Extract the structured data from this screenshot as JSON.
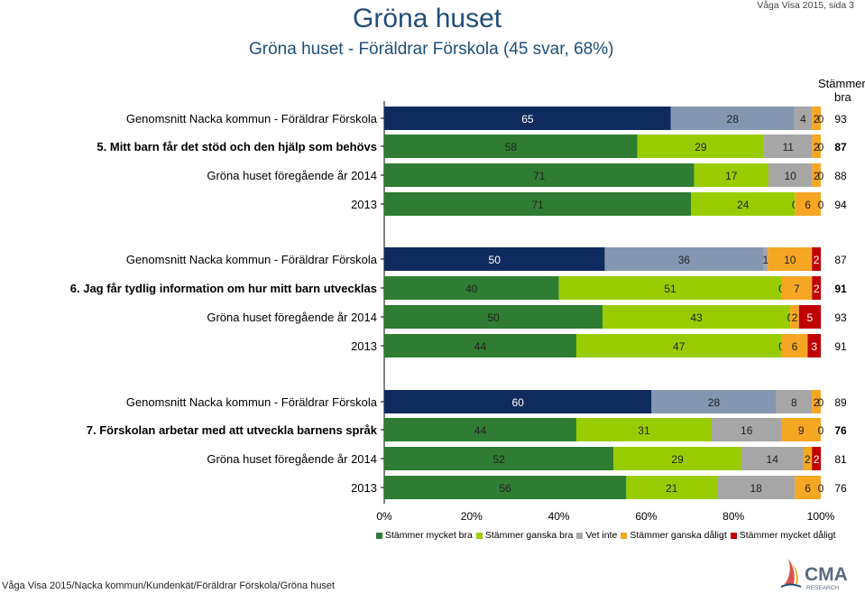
{
  "header": {
    "title": "Gröna huset",
    "subtitle": "Gröna huset - Föräldrar Förskola (45 svar, 68%)",
    "page_ref": "Våga Visa 2015, sida 3"
  },
  "score_header": [
    "Stämmer",
    "bra"
  ],
  "footer": "Våga Visa 2015/Nacka kommun/Kundenkät/Föräldrar Förskola/Gröna huset",
  "logo": {
    "name": "cma-research-logo",
    "text_main": "CMA",
    "text_sub": "RESEARCH"
  },
  "colors": {
    "Stämmer mycket bra": "#2e7d32",
    "Stämmer ganska bra": "#99cc00",
    "Vet inte": "#a6a6a6",
    "Stämmer ganska dåligt": "#f5a623",
    "Stämmer mycket dåligt": "#c00000",
    "avg_mycket_bra": "#0f2b5e",
    "avg_ganska_bra": "#8496b0",
    "avg_vet_inte": "#a6a6a6",
    "title": "#1f4e79"
  },
  "chart_data": {
    "type": "bar",
    "orientation": "horizontal",
    "stacked": "percent",
    "xlim": [
      0,
      100
    ],
    "xticks": [
      "0%",
      "20%",
      "40%",
      "60%",
      "80%",
      "100%"
    ],
    "legend": [
      "Stämmer mycket bra",
      "Stämmer ganska bra",
      "Vet inte",
      "Stämmer ganska dåligt",
      "Stämmer mycket dåligt"
    ],
    "legend_position": "bottom",
    "score_label": "Stämmer bra",
    "rows": [
      {
        "label": "Genomsnitt Nacka kommun - Föräldrar Förskola",
        "kind": "avg",
        "bold": false,
        "values": [
          65,
          28,
          4,
          2,
          0
        ],
        "labels": [
          "65",
          "28",
          "4",
          "2",
          "0"
        ],
        "score": "93"
      },
      {
        "label": "5. Mitt barn får det stöd och den hjälp som behövs",
        "kind": "current",
        "bold": true,
        "values": [
          58,
          29,
          11,
          2,
          0
        ],
        "labels": [
          "58",
          "29",
          "11",
          "2",
          "0"
        ],
        "score": "87"
      },
      {
        "label": "Gröna huset föregående år 2014",
        "kind": "prev",
        "bold": false,
        "values": [
          71,
          17,
          10,
          2,
          0
        ],
        "labels": [
          "71",
          "17",
          "10",
          "2",
          "0"
        ],
        "score": "88"
      },
      {
        "label": "2013",
        "kind": "prev",
        "bold": false,
        "values": [
          71,
          24,
          0,
          6,
          0
        ],
        "labels": [
          "71",
          "24",
          "0",
          "6",
          "0"
        ],
        "score": "94"
      },
      {
        "label": "Genomsnitt Nacka kommun - Föräldrar Förskola",
        "kind": "avg",
        "bold": false,
        "values": [
          50,
          36,
          1,
          10,
          2
        ],
        "labels": [
          "50",
          "36",
          "1",
          "10",
          "2"
        ],
        "score": "87"
      },
      {
        "label": "6. Jag får tydlig information om hur mitt barn utvecklas",
        "kind": "current",
        "bold": true,
        "values": [
          40,
          51,
          0,
          7,
          2
        ],
        "labels": [
          "40",
          "51",
          "0",
          "7",
          "2"
        ],
        "score": "91"
      },
      {
        "label": "Gröna huset föregående år 2014",
        "kind": "prev",
        "bold": false,
        "values": [
          50,
          43,
          0,
          2,
          5
        ],
        "labels": [
          "50",
          "43",
          "0",
          "2",
          "5"
        ],
        "score": "93"
      },
      {
        "label": "2013",
        "kind": "prev",
        "bold": false,
        "values": [
          44,
          47,
          0,
          6,
          3
        ],
        "labels": [
          "44",
          "47",
          "0",
          "6",
          "3"
        ],
        "score": "91"
      },
      {
        "label": "Genomsnitt Nacka kommun - Föräldrar Förskola",
        "kind": "avg",
        "bold": false,
        "values": [
          60,
          28,
          8,
          2,
          0
        ],
        "labels": [
          "60",
          "28",
          "8",
          "2",
          "0"
        ],
        "score": "89"
      },
      {
        "label": "7. Förskolan arbetar med att utveckla barnens språk",
        "kind": "current",
        "bold": true,
        "values": [
          44,
          31,
          16,
          9,
          0
        ],
        "labels": [
          "44",
          "31",
          "16",
          "9",
          "0"
        ],
        "score": "76"
      },
      {
        "label": "Gröna huset föregående år 2014",
        "kind": "prev",
        "bold": false,
        "values": [
          52,
          29,
          14,
          2,
          2
        ],
        "labels": [
          "52",
          "29",
          "14",
          "2",
          "2"
        ],
        "score": "81"
      },
      {
        "label": "2013",
        "kind": "prev",
        "bold": false,
        "values": [
          56,
          21,
          18,
          6,
          0
        ],
        "labels": [
          "56",
          "21",
          "18",
          "6",
          "0"
        ],
        "score": "76"
      }
    ]
  }
}
